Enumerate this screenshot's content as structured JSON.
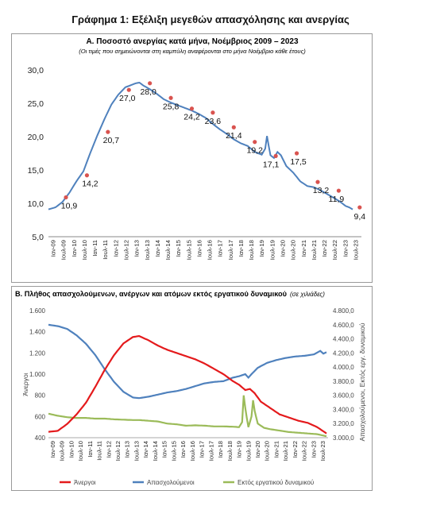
{
  "figure_title": "Γράφημα 1: Εξέλιξη μεγεθών απασχόλησης και ανεργίας",
  "chart_data": [
    {
      "type": "line",
      "title": "Α. Ποσοστό ανεργίας κατά μήνα, Νοέμβριος 2009 – 2023",
      "subtitle": "(Οι τιμές που σημειώνονται στη καμπύλη αναφέρονται στο μήνα Νοέμβριο κάθε έτους)",
      "ylim": [
        5.0,
        30.0
      ],
      "yticks": [
        "5,0",
        "10,0",
        "15,0",
        "20,0",
        "25,0",
        "30,0"
      ],
      "xticks": [
        "Ιαν-09",
        "Ιουλ-09",
        "Ιαν-10",
        "Ιουλ-10",
        "Ιαν-11",
        "Ιουλ-11",
        "Ιαν-12",
        "Ιουλ-12",
        "Ιαν-13",
        "Ιουλ-13",
        "Ιαν-14",
        "Ιουλ-14",
        "Ιαν-15",
        "Ιουλ-15",
        "Ιαν-16",
        "Ιουλ-16",
        "Ιαν-17",
        "Ιουλ-17",
        "Ιαν-18",
        "Ιουλ-18",
        "Ιαν-19",
        "Ιουλ-19",
        "Ιαν-20",
        "Ιουλ-20",
        "Ιαν-21",
        "Ιουλ-21",
        "Ιαν-22",
        "Ιουλ-22",
        "Ιαν-23",
        "Ιουλ-23"
      ],
      "series": [
        {
          "color": "#4f81bd",
          "anchors": [
            [
              0,
              9.1
            ],
            [
              4,
              9.4
            ],
            [
              8,
              10.2
            ],
            [
              12,
              11.6
            ],
            [
              16,
              13.3
            ],
            [
              20,
              14.8
            ],
            [
              24,
              17.6
            ],
            [
              28,
              20.2
            ],
            [
              32,
              22.6
            ],
            [
              36,
              24.8
            ],
            [
              40,
              26.3
            ],
            [
              44,
              27.4
            ],
            [
              48,
              27.8
            ],
            [
              50,
              28.0
            ],
            [
              52,
              28.1
            ],
            [
              54,
              27.7
            ],
            [
              58,
              27.1
            ],
            [
              62,
              26.4
            ],
            [
              66,
              25.6
            ],
            [
              70,
              25.1
            ],
            [
              74,
              24.7
            ],
            [
              78,
              24.3
            ],
            [
              82,
              23.9
            ],
            [
              86,
              23.4
            ],
            [
              90,
              22.8
            ],
            [
              94,
              21.9
            ],
            [
              98,
              21.1
            ],
            [
              102,
              20.4
            ],
            [
              106,
              19.6
            ],
            [
              110,
              19.0
            ],
            [
              114,
              18.6
            ],
            [
              118,
              17.7
            ],
            [
              122,
              17.3
            ],
            [
              124,
              18.2
            ],
            [
              125,
              20.1
            ],
            [
              126,
              18.6
            ],
            [
              127,
              17.2
            ],
            [
              129,
              16.8
            ],
            [
              131,
              17.7
            ],
            [
              133,
              17.2
            ],
            [
              136,
              15.6
            ],
            [
              140,
              14.6
            ],
            [
              144,
              13.3
            ],
            [
              148,
              12.6
            ],
            [
              152,
              12.4
            ],
            [
              156,
              11.9
            ],
            [
              160,
              11.3
            ],
            [
              164,
              10.7
            ],
            [
              167,
              10.2
            ],
            [
              170,
              9.6
            ],
            [
              172,
              9.4
            ],
            [
              174,
              9.1
            ]
          ]
        }
      ],
      "points": [
        {
          "i": 10,
          "value": 10.9,
          "label": "10,9"
        },
        {
          "i": 22,
          "value": 14.2,
          "label": "14,2"
        },
        {
          "i": 34,
          "value": 20.7,
          "label": "20,7"
        },
        {
          "i": 46,
          "value": 27.0,
          "label": "27,0"
        },
        {
          "i": 58,
          "value": 28.0,
          "label": "28,0"
        },
        {
          "i": 70,
          "value": 25.8,
          "label": "25,8"
        },
        {
          "i": 82,
          "value": 24.2,
          "label": "24,2"
        },
        {
          "i": 94,
          "value": 23.6,
          "label": "23,6"
        },
        {
          "i": 106,
          "value": 21.4,
          "label": "21,4"
        },
        {
          "i": 118,
          "value": 19.2,
          "label": "19,2"
        },
        {
          "i": 130,
          "value": 17.1,
          "label": "17,1"
        },
        {
          "i": 142,
          "value": 17.5,
          "label": "17,5"
        },
        {
          "i": 154,
          "value": 13.2,
          "label": "13,2"
        },
        {
          "i": 166,
          "value": 11.9,
          "label": "11,9"
        },
        {
          "i": 178,
          "value": 9.4,
          "label": "9,4"
        }
      ],
      "marker_color": "#d9534f"
    },
    {
      "type": "line",
      "title": "Β. Πλήθος απασχολούμενων, ανέργων και ατόμων εκτός εργατικού δυναμικού",
      "title_note": "(σε χιλιάδες)",
      "ylabel": "Άνεργοι",
      "y2label": "Απασχολούμενοι, Εκτός εργ. δυναμικού",
      "ylim": [
        400,
        1600
      ],
      "y2lim": [
        3000,
        4800
      ],
      "yticks": [
        "400",
        "600",
        "800",
        "1.000",
        "1.200",
        "1.400",
        "1.600"
      ],
      "y2ticks": [
        "3.000,0",
        "3.200,0",
        "3.400,0",
        "3.600,0",
        "3.800,0",
        "4.000,0",
        "4.200,0",
        "4.400,0",
        "4.600,0",
        "4.800,0"
      ],
      "xticks": [
        "Ιαν-09",
        "Ιουλ-09",
        "Ιαν-10",
        "Ιουλ-10",
        "Ιαν-11",
        "Ιουλ-11",
        "Ιαν-12",
        "Ιουλ-12",
        "Ιαν-13",
        "Ιουλ-13",
        "Ιαν-14",
        "Ιουλ-14",
        "Ιαν-15",
        "Ιουλ-15",
        "Ιαν-16",
        "Ιουλ-16",
        "Ιαν-17",
        "Ιουλ-17",
        "Ιαν-18",
        "Ιουλ-18",
        "Ιαν-19",
        "Ιουλ-19",
        "Ιαν-20",
        "Ιουλ-20",
        "Ιαν-21",
        "Ιουλ-21",
        "Ιαν-22",
        "Ιουλ-22",
        "Ιαν-23",
        "Ιουλ-23"
      ],
      "series": [
        {
          "name": "Άνεργοι",
          "color": "#e41a1c",
          "axis": "left",
          "anchors": [
            [
              0,
              455
            ],
            [
              6,
              465
            ],
            [
              12,
              530
            ],
            [
              18,
              620
            ],
            [
              24,
              730
            ],
            [
              30,
              880
            ],
            [
              36,
              1040
            ],
            [
              42,
              1180
            ],
            [
              48,
              1290
            ],
            [
              54,
              1350
            ],
            [
              58,
              1360
            ],
            [
              64,
              1320
            ],
            [
              70,
              1270
            ],
            [
              76,
              1230
            ],
            [
              82,
              1200
            ],
            [
              88,
              1170
            ],
            [
              94,
              1140
            ],
            [
              100,
              1100
            ],
            [
              106,
              1050
            ],
            [
              112,
              1000
            ],
            [
              118,
              935
            ],
            [
              122,
              900
            ],
            [
              126,
              850
            ],
            [
              129,
              860
            ],
            [
              132,
              820
            ],
            [
              136,
              740
            ],
            [
              142,
              680
            ],
            [
              148,
              620
            ],
            [
              154,
              590
            ],
            [
              160,
              560
            ],
            [
              166,
              540
            ],
            [
              172,
              500
            ],
            [
              175,
              470
            ],
            [
              178,
              440
            ]
          ]
        },
        {
          "name": "Απασχολούμενοι",
          "color": "#4f81bd",
          "axis": "right",
          "anchors": [
            [
              0,
              4600
            ],
            [
              6,
              4580
            ],
            [
              12,
              4540
            ],
            [
              18,
              4450
            ],
            [
              24,
              4330
            ],
            [
              30,
              4170
            ],
            [
              36,
              3970
            ],
            [
              42,
              3790
            ],
            [
              48,
              3650
            ],
            [
              54,
              3570
            ],
            [
              58,
              3560
            ],
            [
              64,
              3580
            ],
            [
              70,
              3610
            ],
            [
              76,
              3640
            ],
            [
              82,
              3660
            ],
            [
              88,
              3690
            ],
            [
              94,
              3730
            ],
            [
              100,
              3770
            ],
            [
              106,
              3790
            ],
            [
              112,
              3800
            ],
            [
              118,
              3850
            ],
            [
              122,
              3870
            ],
            [
              126,
              3900
            ],
            [
              128,
              3850
            ],
            [
              130,
              3900
            ],
            [
              134,
              3990
            ],
            [
              140,
              4060
            ],
            [
              146,
              4100
            ],
            [
              152,
              4130
            ],
            [
              158,
              4150
            ],
            [
              164,
              4160
            ],
            [
              170,
              4180
            ],
            [
              174,
              4230
            ],
            [
              176,
              4190
            ],
            [
              178,
              4210
            ]
          ]
        },
        {
          "name": "Εκτός εργατικού δυναμικού",
          "color": "#9bbb59",
          "axis": "right",
          "anchors": [
            [
              0,
              3340
            ],
            [
              6,
              3310
            ],
            [
              12,
              3290
            ],
            [
              18,
              3280
            ],
            [
              24,
              3280
            ],
            [
              30,
              3270
            ],
            [
              36,
              3270
            ],
            [
              42,
              3260
            ],
            [
              48,
              3255
            ],
            [
              54,
              3250
            ],
            [
              58,
              3250
            ],
            [
              64,
              3240
            ],
            [
              70,
              3230
            ],
            [
              76,
              3200
            ],
            [
              82,
              3190
            ],
            [
              88,
              3170
            ],
            [
              94,
              3175
            ],
            [
              100,
              3170
            ],
            [
              106,
              3160
            ],
            [
              112,
              3160
            ],
            [
              118,
              3155
            ],
            [
              122,
              3150
            ],
            [
              124,
              3220
            ],
            [
              125,
              3600
            ],
            [
              126,
              3420
            ],
            [
              127,
              3280
            ],
            [
              128,
              3150
            ],
            [
              130,
              3300
            ],
            [
              131,
              3530
            ],
            [
              132,
              3380
            ],
            [
              134,
              3200
            ],
            [
              138,
              3140
            ],
            [
              142,
              3120
            ],
            [
              148,
              3100
            ],
            [
              154,
              3080
            ],
            [
              160,
              3070
            ],
            [
              166,
              3060
            ],
            [
              172,
              3050
            ],
            [
              176,
              3030
            ],
            [
              178,
              3020
            ]
          ]
        }
      ],
      "legend": [
        "Άνεργοι",
        "Απασχολούμενοι",
        "Εκτός εργατικού δυναμικού"
      ]
    }
  ]
}
